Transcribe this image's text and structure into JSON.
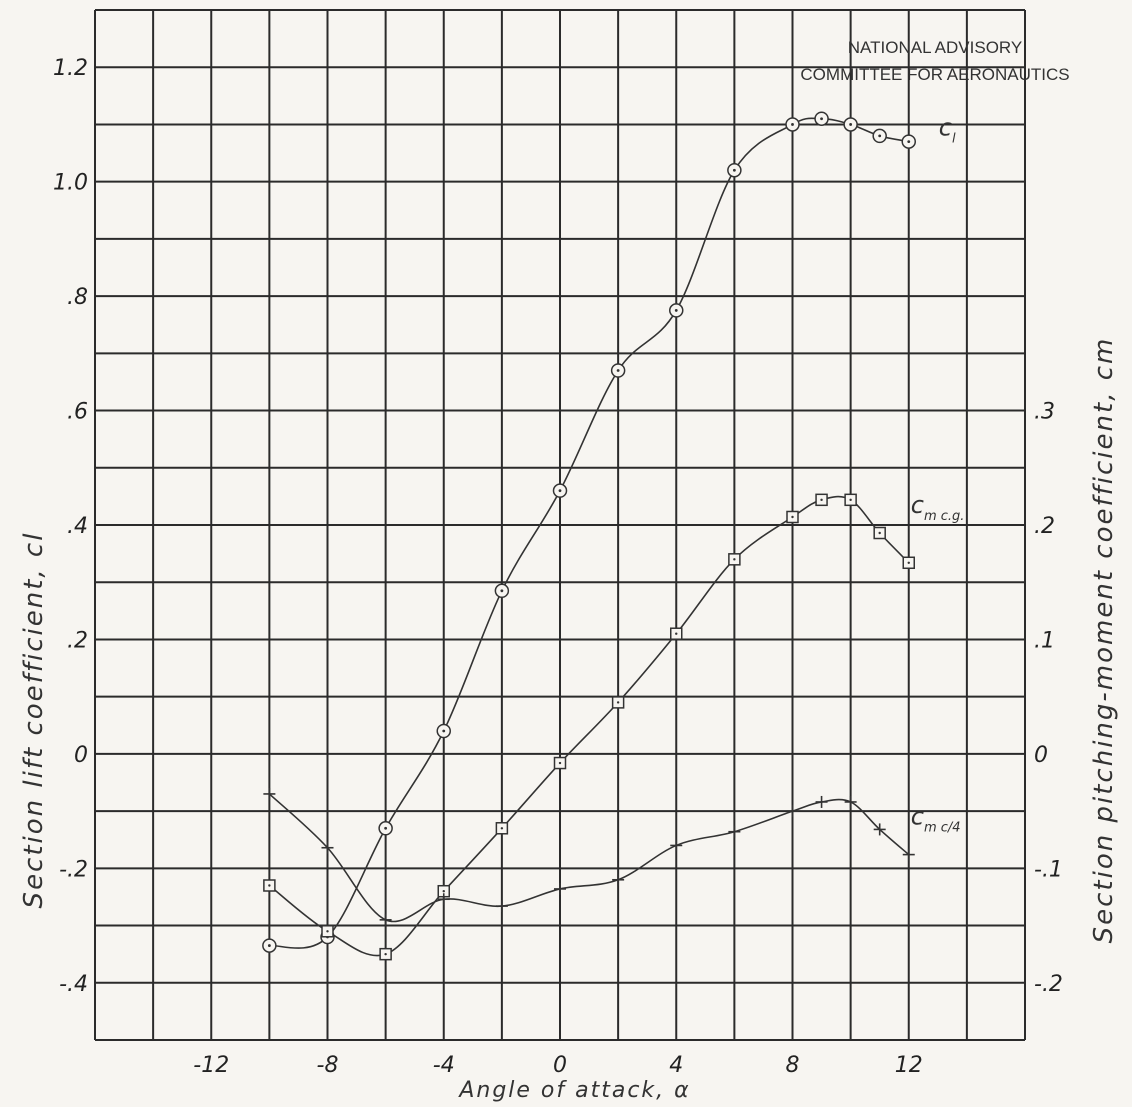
{
  "note": {
    "line1": "NATIONAL ADVISORY",
    "line2": "COMMITTEE FOR AERONAUTICS"
  },
  "chart_data": {
    "type": "line",
    "xlabel": "Angle of attack, α",
    "ylabel_left": "Section lift coefficient, cl",
    "ylabel_right": "Section pitching-moment coefficient, cm",
    "xlim": [
      -16,
      16
    ],
    "ylim_left": [
      -0.5,
      1.3
    ],
    "ylim_right": [
      -0.25,
      0.65
    ],
    "grid": true,
    "x_ticks": [
      {
        "value": -12,
        "label": "-12"
      },
      {
        "value": -8,
        "label": "-8"
      },
      {
        "value": -4,
        "label": "-4"
      },
      {
        "value": 0,
        "label": "0"
      },
      {
        "value": 4,
        "label": "4"
      },
      {
        "value": 8,
        "label": "8"
      },
      {
        "value": 12,
        "label": "12"
      }
    ],
    "left_ticks": [
      {
        "value": 1.2,
        "label": "1.2"
      },
      {
        "value": 1.0,
        "label": "1.0"
      },
      {
        "value": 0.8,
        "label": ".8"
      },
      {
        "value": 0.6,
        "label": ".6"
      },
      {
        "value": 0.4,
        "label": ".4"
      },
      {
        "value": 0.2,
        "label": ".2"
      },
      {
        "value": 0.0,
        "label": "0"
      },
      {
        "value": -0.2,
        "label": "-.2"
      },
      {
        "value": -0.4,
        "label": "-.4"
      }
    ],
    "right_ticks": [
      {
        "value": 0.3,
        "label": ".3"
      },
      {
        "value": 0.2,
        "label": ".2"
      },
      {
        "value": 0.1,
        "label": ".1"
      },
      {
        "value": 0.0,
        "label": "0"
      },
      {
        "value": -0.1,
        "label": "-.1"
      },
      {
        "value": -0.2,
        "label": "-.2"
      }
    ],
    "series": [
      {
        "name": "cl",
        "label_main": "c",
        "label_sub": "l",
        "axis": "left",
        "marker": "circle",
        "x": [
          -10,
          -8,
          -6,
          -4,
          -2,
          0,
          2,
          4,
          6,
          8,
          9,
          10,
          11,
          12
        ],
        "y": [
          -0.335,
          -0.32,
          -0.13,
          0.04,
          0.285,
          0.46,
          0.67,
          0.775,
          1.02,
          1.1,
          1.11,
          1.1,
          1.08,
          1.07
        ]
      },
      {
        "name": "cm c.g.",
        "label_main": "c",
        "label_sub": "m c.g.",
        "axis": "right",
        "marker": "square",
        "x": [
          -10,
          -8,
          -6,
          -4,
          -2,
          0,
          2,
          4,
          6,
          8,
          9,
          10,
          11,
          12
        ],
        "y": [
          -0.115,
          -0.155,
          -0.175,
          -0.12,
          -0.065,
          -0.008,
          0.045,
          0.105,
          0.17,
          0.207,
          0.222,
          0.222,
          0.193,
          0.167
        ]
      },
      {
        "name": "cm c/4",
        "label_main": "c",
        "label_sub": "m c/4",
        "axis": "right",
        "marker": "plus",
        "x": [
          -10,
          -8,
          -6,
          -4,
          -2,
          0,
          2,
          4,
          6,
          8,
          9,
          10,
          11,
          12
        ],
        "y": [
          -0.035,
          -0.082,
          -0.145,
          -0.127,
          -0.133,
          -0.118,
          -0.11,
          -0.08,
          -0.068,
          -0.05,
          -0.042,
          -0.042,
          -0.066,
          -0.088
        ]
      }
    ]
  }
}
